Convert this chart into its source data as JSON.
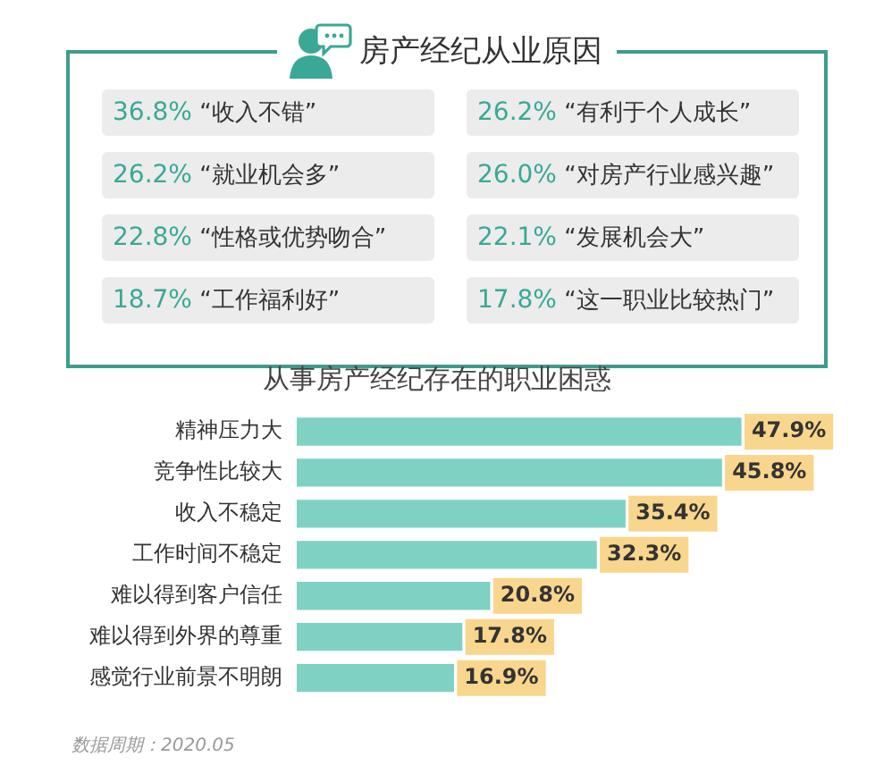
{
  "chart_data": [
    {
      "type": "other",
      "title": "房产经纪从业原因",
      "annotations": [
        "36.8% “收入不错”",
        "26.2% “有利于个人成长”",
        "26.2% “就业机会多”",
        "26.0% “对房产行业感兴趣”",
        "22.8% “性格或优势吻合”",
        "22.1% “发展机会大”",
        "18.7% “工作福利好”",
        "17.8% “这一职业比较热门”"
      ]
    },
    {
      "type": "bar",
      "orientation": "horizontal",
      "title": "从事房产经纪存在的职业困惑",
      "categories": [
        "精神压力大",
        "竞争性比较大",
        "收入不稳定",
        "工作时间不稳定",
        "难以得到客户信任",
        "难以得到外界的尊重",
        "感觉行业前景不明朗"
      ],
      "values": [
        47.9,
        45.8,
        35.4,
        32.3,
        20.8,
        17.8,
        16.9
      ],
      "value_labels": [
        "47.9%",
        "45.8%",
        "35.4%",
        "32.3%",
        "20.8%",
        "17.8%",
        "16.9%"
      ],
      "color": "#7fd2c3",
      "tick_labels": "y",
      "legend": false,
      "grid": false,
      "annotations": [
        "数据周期：2020.05"
      ]
    }
  ]
}
